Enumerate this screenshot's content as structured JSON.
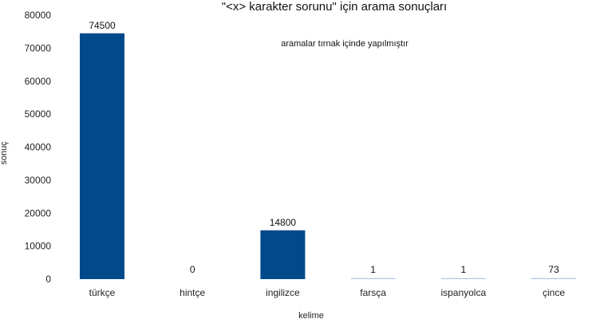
{
  "chart_data": {
    "type": "bar",
    "title": "\"<x> karakter sorunu\" için arama sonuçları",
    "subtitle": "aramalar tırnak içinde yapılmıştır",
    "xlabel": "kelime",
    "ylabel": "sonuç",
    "categories": [
      "türkçe",
      "hintçe",
      "ingilizce",
      "farsça",
      "ispanyolca",
      "çince"
    ],
    "values": [
      74500,
      0,
      14800,
      1,
      1,
      73
    ],
    "value_labels": [
      "74500",
      "0",
      "14800",
      "1",
      "1",
      "73"
    ],
    "ylim": [
      0,
      80000
    ],
    "yticks": [
      0,
      10000,
      20000,
      30000,
      40000,
      50000,
      60000,
      70000,
      80000
    ],
    "ytick_labels": [
      "0",
      "10000",
      "20000",
      "30000",
      "40000",
      "50000",
      "60000",
      "70000",
      "80000"
    ],
    "grid": false,
    "bar_color": "#004a8c",
    "zero_bar_color": "#a9c7e6"
  }
}
